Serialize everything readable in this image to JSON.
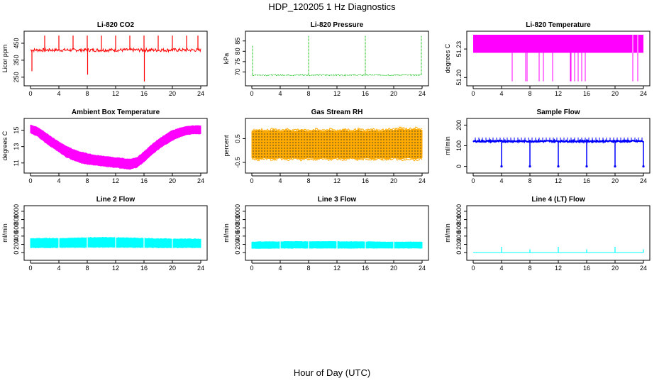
{
  "page": {
    "title": "HDP_120205  1 Hz Diagnostics",
    "footer_xlabel": "Hour of Day (UTC)"
  },
  "chart_data": [
    {
      "type": "line",
      "title": "Li-820 CO2",
      "ylabel": "Licor ppm",
      "color": "#ff0000",
      "xlim": [
        0,
        24
      ],
      "ylim": [
        220,
        500
      ],
      "xticks": [
        "0",
        "4",
        "8",
        "12",
        "16",
        "20",
        "24"
      ],
      "yticks": [
        "250",
        "350",
        "450"
      ],
      "baseline": 410,
      "noise": 10,
      "draw": "line",
      "spikes": [
        {
          "x": 0.2,
          "y": 285
        },
        {
          "x": 2.0,
          "y": 495
        },
        {
          "x": 4.0,
          "y": 495
        },
        {
          "x": 6.0,
          "y": 495
        },
        {
          "x": 8.0,
          "y": 495
        },
        {
          "x": 8.05,
          "y": 265
        },
        {
          "x": 10.0,
          "y": 495
        },
        {
          "x": 12.0,
          "y": 495
        },
        {
          "x": 14.0,
          "y": 495
        },
        {
          "x": 16.0,
          "y": 495
        },
        {
          "x": 16.05,
          "y": 225
        },
        {
          "x": 18.0,
          "y": 495
        },
        {
          "x": 20.0,
          "y": 495
        },
        {
          "x": 22.0,
          "y": 495
        },
        {
          "x": 23.6,
          "y": 495
        }
      ]
    },
    {
      "type": "line",
      "title": "Li-820 Pressure",
      "ylabel": "kPa",
      "color": "#00bb00",
      "xlim": [
        0,
        24
      ],
      "ylim": [
        65,
        88
      ],
      "xticks": [
        "0",
        "4",
        "8",
        "12",
        "16",
        "20",
        "24"
      ],
      "yticks": [
        "70",
        "75",
        "80",
        "85"
      ],
      "baseline": 68.5,
      "noise": 0.3,
      "draw": "dots",
      "spikes": [
        {
          "x": 0.1,
          "y": 83
        },
        {
          "x": 8.0,
          "y": 87.5
        },
        {
          "x": 16.0,
          "y": 87.5
        },
        {
          "x": 23.9,
          "y": 87.5
        }
      ]
    },
    {
      "type": "line",
      "title": "Li-820 Temperature",
      "ylabel": "degrees C",
      "color": "#ff00ff",
      "xlim": [
        0,
        24
      ],
      "ylim": [
        51.195,
        51.245
      ],
      "xticks": [
        "0",
        "4",
        "8",
        "12",
        "16",
        "20",
        "24"
      ],
      "yticks": [
        "51.20",
        "51.23"
      ],
      "bands": [
        {
          "from": 0,
          "to": 24,
          "low": 51.226,
          "high": 51.245
        }
      ],
      "drops": [
        5.5,
        7.4,
        7.6,
        9.3,
        9.9,
        11.2,
        13.7,
        13.8,
        14.3,
        14.8,
        15.3,
        15.8,
        22.5,
        23.2
      ],
      "drop_to": 51.196
    },
    {
      "type": "area",
      "title": "Ambient Box Temperature",
      "ylabel": "degrees C",
      "color": "#ff00ff",
      "xlim": [
        0,
        24
      ],
      "ylim": [
        10.2,
        16.0
      ],
      "xticks": [
        "0",
        "4",
        "8",
        "12",
        "16",
        "20",
        "24"
      ],
      "yticks": [
        "11",
        "13",
        "15"
      ],
      "band_low": [
        14.7,
        14.3,
        13.6,
        13.0,
        12.4,
        11.8,
        11.4,
        11.1,
        10.9,
        10.8,
        10.7,
        10.6,
        10.5,
        10.4,
        10.3,
        10.5,
        11.2,
        12.0,
        12.7,
        13.3,
        13.8,
        14.2,
        14.5,
        14.6,
        14.6
      ],
      "band_high": [
        15.6,
        15.3,
        14.7,
        14.1,
        13.5,
        13.0,
        12.6,
        12.3,
        12.1,
        11.9,
        11.8,
        11.7,
        11.6,
        11.5,
        11.4,
        11.6,
        12.3,
        13.1,
        13.8,
        14.4,
        14.9,
        15.2,
        15.4,
        15.5,
        15.5
      ]
    },
    {
      "type": "area",
      "title": "Gas Stream RH",
      "ylabel": "percent",
      "color": "#ffaa00",
      "xlim": [
        0,
        24
      ],
      "ylim": [
        -0.8,
        1.2
      ],
      "xticks": [
        "0",
        "4",
        "8",
        "12",
        "16",
        "20",
        "24"
      ],
      "yticks": [
        "-0.5",
        "0.5"
      ],
      "band_low": [
        -0.3,
        -0.35,
        -0.3,
        -0.35,
        -0.3,
        -0.35,
        -0.3,
        -0.35,
        -0.3,
        -0.35,
        -0.3,
        -0.35,
        -0.3,
        -0.35,
        -0.3,
        -0.35,
        -0.3,
        -0.35,
        -0.3,
        -0.35,
        -0.3,
        -0.35,
        -0.3,
        -0.35,
        -0.3
      ],
      "band_high": [
        0.8,
        0.85,
        0.8,
        0.85,
        0.8,
        0.85,
        0.8,
        0.85,
        0.8,
        0.85,
        0.8,
        0.85,
        0.8,
        0.85,
        0.8,
        0.85,
        0.8,
        0.85,
        0.8,
        0.85,
        0.85,
        0.9,
        0.85,
        0.9,
        0.85
      ],
      "hatch_color": "#222222"
    },
    {
      "type": "line",
      "title": "Sample Flow",
      "ylabel": "ml/min",
      "color": "#0000ff",
      "xlim": [
        0,
        24
      ],
      "ylim": [
        -15,
        215
      ],
      "xticks": [
        "0",
        "4",
        "8",
        "12",
        "16",
        "20",
        "24"
      ],
      "yticks": [
        "0",
        "100",
        "200"
      ],
      "baseline": 122,
      "noise": 4,
      "draw": "thick",
      "drops": [
        4.0,
        8.0,
        12.0,
        16.0,
        20.0,
        24.0
      ],
      "drop_to": 0,
      "bumps_every": 0.5,
      "bump_to": 140
    },
    {
      "type": "area",
      "title": "Line 2 Flow",
      "ylabel": "ml/min",
      "color": "#00ffff",
      "xlim": [
        0,
        24
      ],
      "ylim": [
        -100,
        1050
      ],
      "xticks": [
        "0",
        "4",
        "8",
        "12",
        "16",
        "20",
        "24"
      ],
      "yticks": [
        "0",
        "200",
        "400",
        "600",
        "800",
        "1000"
      ],
      "band_low": [
        130,
        130,
        130,
        130,
        135,
        135,
        135,
        135,
        140,
        140,
        140,
        140,
        140,
        140,
        135,
        135,
        135,
        135,
        130,
        130,
        130,
        130,
        130,
        130,
        130
      ],
      "band_high": [
        330,
        330,
        335,
        335,
        330,
        335,
        340,
        345,
        350,
        355,
        355,
        355,
        350,
        350,
        345,
        340,
        335,
        330,
        325,
        325,
        320,
        320,
        320,
        320,
        320
      ],
      "gaps": [
        4.0,
        8.0,
        12.0,
        16.0,
        20.0
      ]
    },
    {
      "type": "area",
      "title": "Line 3 Flow",
      "ylabel": "ml/min",
      "color": "#00ffff",
      "xlim": [
        0,
        24
      ],
      "ylim": [
        -100,
        1050
      ],
      "xticks": [
        "0",
        "4",
        "8",
        "12",
        "16",
        "20",
        "24"
      ],
      "yticks": [
        "0",
        "200",
        "400",
        "600",
        "800",
        "1000"
      ],
      "band_low": [
        110,
        110,
        110,
        110,
        115,
        115,
        115,
        115,
        115,
        115,
        115,
        115,
        115,
        115,
        115,
        115,
        115,
        115,
        115,
        115,
        115,
        115,
        115,
        115,
        115
      ],
      "band_high": [
        250,
        255,
        255,
        255,
        255,
        260,
        260,
        260,
        260,
        260,
        260,
        260,
        260,
        255,
        255,
        255,
        255,
        255,
        250,
        250,
        250,
        250,
        250,
        250,
        250
      ],
      "gaps": [
        4.0,
        8.0,
        12.0,
        16.0,
        20.0
      ]
    },
    {
      "type": "line",
      "title": "Line 4 (LT) Flow",
      "ylabel": "ml/min",
      "color": "#00ffff",
      "xlim": [
        0,
        24
      ],
      "ylim": [
        -100,
        1050
      ],
      "xticks": [
        "0",
        "4",
        "8",
        "12",
        "16",
        "20",
        "24"
      ],
      "yticks": [
        "0",
        "200",
        "400",
        "600",
        "800",
        "1000"
      ],
      "baseline": 2,
      "noise": 0,
      "draw": "line",
      "spikes": [
        {
          "x": 4.0,
          "y": 140
        },
        {
          "x": 8.0,
          "y": 80
        },
        {
          "x": 12.0,
          "y": 140
        },
        {
          "x": 16.0,
          "y": 80
        },
        {
          "x": 20.0,
          "y": 140
        },
        {
          "x": 24.0,
          "y": 80
        }
      ]
    }
  ]
}
